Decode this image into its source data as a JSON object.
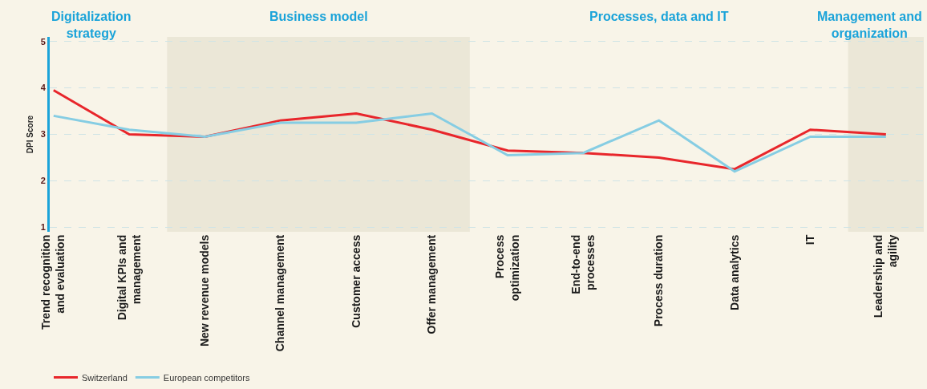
{
  "chart_data": {
    "type": "line",
    "ylabel": "DPI Score",
    "categories": [
      "Trend recognition and evaluation",
      "Digital KPIs and management",
      "New revenue models",
      "Channel management",
      "Customer access",
      "Offer management",
      "Process optimization",
      "End-to-end processes",
      "Process duration",
      "Data analytics",
      "IT",
      "Leadership and agility"
    ],
    "series": [
      {
        "name": "Switzerland",
        "color": "#e8262b",
        "values": [
          3.95,
          3.0,
          2.95,
          3.3,
          3.45,
          3.1,
          2.65,
          2.6,
          2.5,
          2.25,
          3.1,
          3.0
        ]
      },
      {
        "name": "European competitors",
        "color": "#86cde3",
        "values": [
          3.4,
          3.1,
          2.95,
          3.25,
          3.25,
          3.45,
          2.55,
          2.6,
          3.3,
          2.2,
          2.95,
          2.95
        ]
      }
    ],
    "ylim": [
      0.9,
      5.1
    ],
    "yticks": [
      1,
      2,
      3,
      4,
      5
    ],
    "grid": "y",
    "legend": "bottom left",
    "marker": "none",
    "line_style": "solid",
    "annotations": [
      "Digitalization strategy",
      "Processes, data and IT"
    ],
    "bands": [
      {
        "axis": "x",
        "from": "New revenue models",
        "to": "Offer management",
        "label": "Business model",
        "color": "#ebe7d7"
      },
      {
        "axis": "x",
        "from": "Leadership and agility",
        "to": "Leadership and agility",
        "label": "Management and organization",
        "color": "#ebe7d7"
      }
    ]
  }
}
